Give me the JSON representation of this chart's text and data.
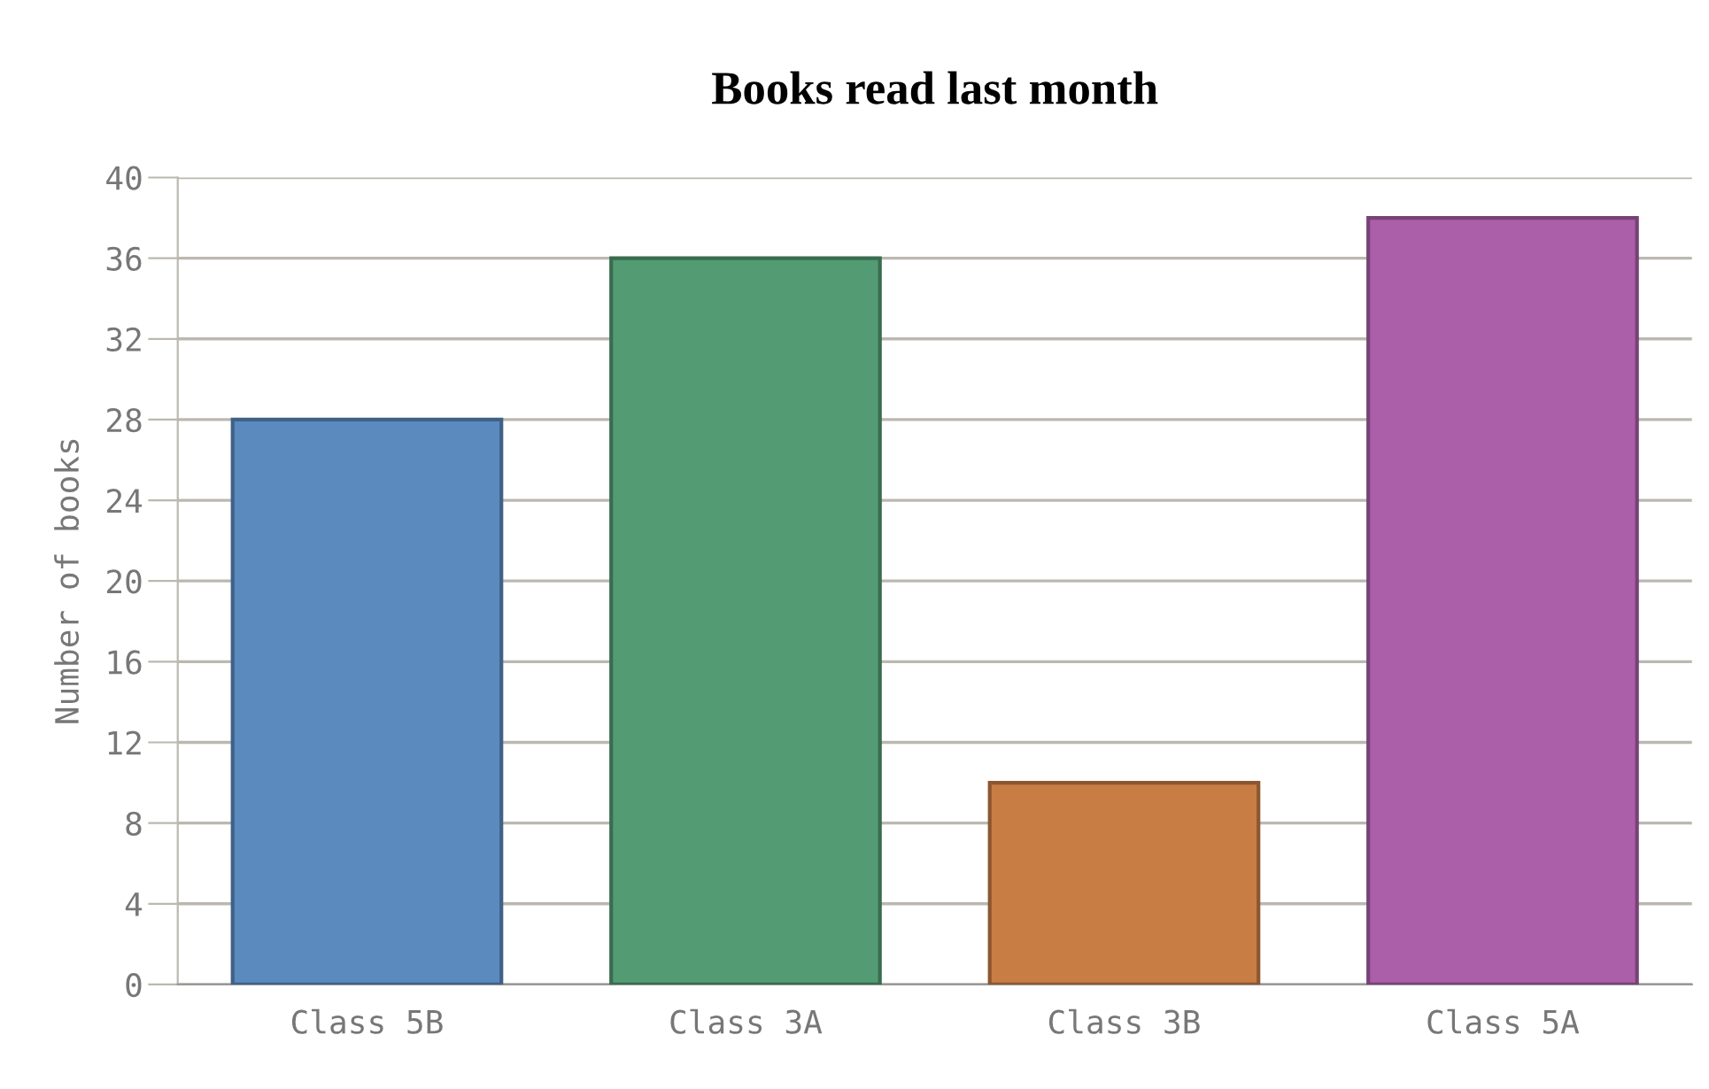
{
  "chart_data": {
    "type": "bar",
    "title": "Books read last month",
    "ylabel": "Number of books",
    "categories": [
      "Class 5B",
      "Class 3A",
      "Class 3B",
      "Class 5A"
    ],
    "values": [
      28,
      36,
      10,
      38
    ],
    "colors": [
      "#5b8abf",
      "#539b73",
      "#c87d45",
      "#aa5fa8"
    ],
    "ylim": [
      0,
      40
    ],
    "yticks": [
      0,
      4,
      8,
      12,
      16,
      20,
      24,
      28,
      32,
      36,
      40
    ],
    "grid": "y",
    "legend": false
  }
}
